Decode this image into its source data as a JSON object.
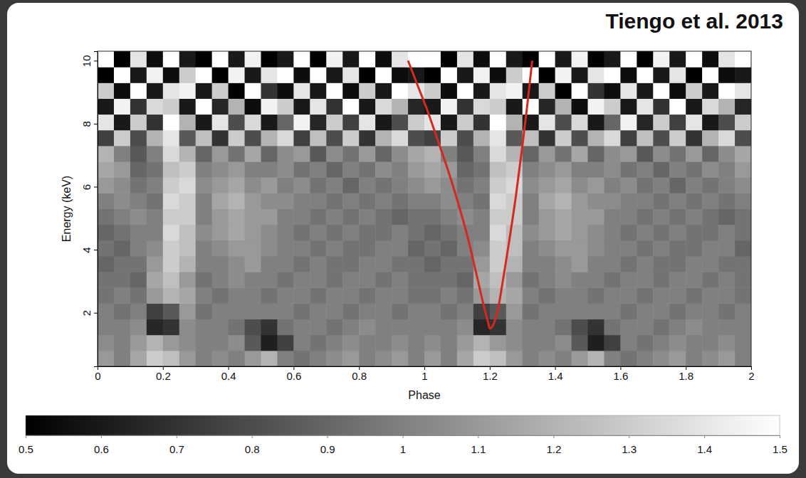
{
  "chart_data": {
    "type": "heatmap",
    "title": "Tiengo et al. 2013",
    "xlabel": "Phase",
    "ylabel": "Energy (keV)",
    "xlim": [
      0,
      2
    ],
    "ylim": [
      0.3,
      10.3
    ],
    "xticks": [
      0,
      0.2,
      0.4,
      0.6,
      0.8,
      1,
      1.2,
      1.4,
      1.6,
      1.8,
      2
    ],
    "yticks": [
      2,
      4,
      6,
      8,
      10
    ],
    "x_bins": [
      0,
      0.05,
      0.1,
      0.15,
      0.2,
      0.25,
      0.3,
      0.35,
      0.4,
      0.45,
      0.5,
      0.55,
      0.6,
      0.65,
      0.7,
      0.75,
      0.8,
      0.85,
      0.9,
      0.95,
      1,
      1.05,
      1.1,
      1.15,
      1.2,
      1.25,
      1.3,
      1.35,
      1.4,
      1.45,
      1.5,
      1.55,
      1.6,
      1.65,
      1.7,
      1.75,
      1.8,
      1.85,
      1.9,
      1.95,
      2
    ],
    "y_bins": [
      0.3,
      0.8,
      1.3,
      1.8,
      2.3,
      2.8,
      3.3,
      3.8,
      4.3,
      4.8,
      5.3,
      5.8,
      6.3,
      6.8,
      7.3,
      7.8,
      8.3,
      8.8,
      9.3,
      9.8,
      10.3
    ],
    "z": [
      [
        1.1,
        1.0,
        1.15,
        1.3,
        1.25,
        1.1,
        1.0,
        1.05,
        1.0,
        1.1,
        1.2,
        1.0,
        0.95,
        1.0,
        1.05,
        1.1,
        1.0,
        1.05,
        1.1,
        1.0,
        1.1,
        1.0,
        1.15,
        1.3,
        1.25,
        1.1,
        1.0,
        1.05,
        1.0,
        1.1,
        1.2,
        1.0,
        0.95,
        1.0,
        1.05,
        1.1,
        1.0,
        1.05,
        1.1,
        1.0
      ],
      [
        1.05,
        1.0,
        1.1,
        1.2,
        1.1,
        1.05,
        1.0,
        1.0,
        1.05,
        0.85,
        0.62,
        0.75,
        1.0,
        0.95,
        1.0,
        1.05,
        1.0,
        1.0,
        1.05,
        1.0,
        1.05,
        1.0,
        1.1,
        1.2,
        1.1,
        1.05,
        1.0,
        1.0,
        1.05,
        0.85,
        0.62,
        0.75,
        1.0,
        0.95,
        1.0,
        1.05,
        1.0,
        1.0,
        1.05,
        1.0
      ],
      [
        1.0,
        1.0,
        1.05,
        0.65,
        0.7,
        1.05,
        1.0,
        1.0,
        0.95,
        0.8,
        0.7,
        0.95,
        1.0,
        1.0,
        0.95,
        1.0,
        1.05,
        1.0,
        1.0,
        1.0,
        1.0,
        1.0,
        1.05,
        0.65,
        0.7,
        1.05,
        1.0,
        1.0,
        0.95,
        0.8,
        0.7,
        0.95,
        1.0,
        1.0,
        0.95,
        1.0,
        1.05,
        1.0,
        1.0,
        1.0
      ],
      [
        1.0,
        0.95,
        1.0,
        0.75,
        0.85,
        1.1,
        0.95,
        1.0,
        1.0,
        1.0,
        1.0,
        1.0,
        0.95,
        1.0,
        1.0,
        0.95,
        1.0,
        1.0,
        0.95,
        1.0,
        1.0,
        0.95,
        1.0,
        0.75,
        0.85,
        1.1,
        0.95,
        1.0,
        1.0,
        1.0,
        1.0,
        1.0,
        0.95,
        1.0,
        1.0,
        0.95,
        1.0,
        1.0,
        0.95,
        1.0
      ],
      [
        0.95,
        1.0,
        0.95,
        1.1,
        1.2,
        1.15,
        1.0,
        0.95,
        1.0,
        1.0,
        0.95,
        1.0,
        1.0,
        0.95,
        1.0,
        1.0,
        0.95,
        1.0,
        1.0,
        0.95,
        0.95,
        1.0,
        0.95,
        1.1,
        1.2,
        1.15,
        1.0,
        0.95,
        1.0,
        1.0,
        0.95,
        1.0,
        1.0,
        0.95,
        1.0,
        1.0,
        0.95,
        1.0,
        1.0,
        0.95
      ],
      [
        0.95,
        0.95,
        0.9,
        1.15,
        1.25,
        1.1,
        0.95,
        1.0,
        1.05,
        1.0,
        1.0,
        0.95,
        1.0,
        1.0,
        0.95,
        1.0,
        1.0,
        0.95,
        1.0,
        0.95,
        0.95,
        0.95,
        0.9,
        1.15,
        1.25,
        1.1,
        0.95,
        1.0,
        1.05,
        1.0,
        1.0,
        0.95,
        1.0,
        1.0,
        0.95,
        1.0,
        1.0,
        0.95,
        1.0,
        0.95
      ],
      [
        0.9,
        0.95,
        0.95,
        1.1,
        1.3,
        1.2,
        1.0,
        1.0,
        1.05,
        1.1,
        1.0,
        1.0,
        0.95,
        1.0,
        0.95,
        0.95,
        1.0,
        1.0,
        0.95,
        0.95,
        0.9,
        0.95,
        0.95,
        1.1,
        1.3,
        1.2,
        1.0,
        1.0,
        1.05,
        1.1,
        1.0,
        1.0,
        0.95,
        1.0,
        0.95,
        0.95,
        1.0,
        1.0,
        0.95,
        0.95
      ],
      [
        0.95,
        0.9,
        1.0,
        1.05,
        1.3,
        1.25,
        1.0,
        1.05,
        1.1,
        1.1,
        1.05,
        1.0,
        1.0,
        0.95,
        1.0,
        0.95,
        0.95,
        1.0,
        1.0,
        0.9,
        0.95,
        0.9,
        1.0,
        1.05,
        1.3,
        1.25,
        1.0,
        1.05,
        1.1,
        1.1,
        1.05,
        1.0,
        1.0,
        0.95,
        1.0,
        0.95,
        0.95,
        1.0,
        1.0,
        0.9
      ],
      [
        0.9,
        0.95,
        1.0,
        1.0,
        1.35,
        1.25,
        1.05,
        1.1,
        1.15,
        1.1,
        1.05,
        1.0,
        0.95,
        1.0,
        0.95,
        1.0,
        0.95,
        0.95,
        1.0,
        0.95,
        0.9,
        0.95,
        1.0,
        1.0,
        1.35,
        1.25,
        1.05,
        1.1,
        1.15,
        1.1,
        1.05,
        1.0,
        0.95,
        1.0,
        0.95,
        1.0,
        0.95,
        0.95,
        1.0,
        0.95
      ],
      [
        0.95,
        1.0,
        1.05,
        1.0,
        1.3,
        1.3,
        1.0,
        1.1,
        1.15,
        1.1,
        1.1,
        1.0,
        1.0,
        0.95,
        1.0,
        0.95,
        1.0,
        0.95,
        0.9,
        0.95,
        0.95,
        1.0,
        1.05,
        1.0,
        1.3,
        1.3,
        1.0,
        1.1,
        1.15,
        1.1,
        1.1,
        1.0,
        1.0,
        0.95,
        1.0,
        0.95,
        1.0,
        0.95,
        0.9,
        0.95
      ],
      [
        1.0,
        1.05,
        1.0,
        0.95,
        1.35,
        1.3,
        1.0,
        1.15,
        1.2,
        1.1,
        1.05,
        1.05,
        1.0,
        1.0,
        0.95,
        1.0,
        0.95,
        1.0,
        0.95,
        1.0,
        1.0,
        1.05,
        1.0,
        0.95,
        1.35,
        1.3,
        1.0,
        1.15,
        1.2,
        1.1,
        1.05,
        1.05,
        1.0,
        1.0,
        0.95,
        1.0,
        0.95,
        1.0,
        0.95,
        1.0
      ],
      [
        1.1,
        1.05,
        0.95,
        1.0,
        1.3,
        1.35,
        1.05,
        1.1,
        1.15,
        1.05,
        1.1,
        1.0,
        1.05,
        0.95,
        1.0,
        0.9,
        1.0,
        0.95,
        1.0,
        1.05,
        1.1,
        1.05,
        0.95,
        1.0,
        1.3,
        1.35,
        1.05,
        1.1,
        1.15,
        1.05,
        1.1,
        1.0,
        1.05,
        0.95,
        1.0,
        0.9,
        1.0,
        0.95,
        1.0,
        1.05
      ],
      [
        1.15,
        1.1,
        0.9,
        0.95,
        1.25,
        1.3,
        1.0,
        1.05,
        1.1,
        1.0,
        1.0,
        1.05,
        0.95,
        1.0,
        0.9,
        1.0,
        0.95,
        1.05,
        1.0,
        1.1,
        1.15,
        1.1,
        0.9,
        0.95,
        1.25,
        1.3,
        1.0,
        1.05,
        1.1,
        1.0,
        1.0,
        1.05,
        0.95,
        1.0,
        0.9,
        1.0,
        0.95,
        1.05,
        1.0,
        1.1
      ],
      [
        1.2,
        1.0,
        0.85,
        1.0,
        1.35,
        1.2,
        0.9,
        1.1,
        0.95,
        1.15,
        0.9,
        1.05,
        1.1,
        0.85,
        1.05,
        0.95,
        1.1,
        0.9,
        1.05,
        1.15,
        1.2,
        1.0,
        0.85,
        1.0,
        1.35,
        1.2,
        0.9,
        1.1,
        0.95,
        1.15,
        0.9,
        1.05,
        1.1,
        0.85,
        1.05,
        0.95,
        1.1,
        0.9,
        1.05,
        1.15
      ],
      [
        0.75,
        1.3,
        0.8,
        1.2,
        1.4,
        0.85,
        1.25,
        0.7,
        1.3,
        0.8,
        1.2,
        1.35,
        0.75,
        1.25,
        0.8,
        1.3,
        0.7,
        1.2,
        1.35,
        0.8,
        0.75,
        1.3,
        0.8,
        1.2,
        1.4,
        0.85,
        1.25,
        0.7,
        1.3,
        0.8,
        1.2,
        1.35,
        0.75,
        1.25,
        0.8,
        1.3,
        0.7,
        1.2,
        1.35,
        0.8
      ],
      [
        1.4,
        0.6,
        1.3,
        0.7,
        1.5,
        1.2,
        0.6,
        1.4,
        0.8,
        1.35,
        0.6,
        0.9,
        1.45,
        0.65,
        1.3,
        0.75,
        1.4,
        0.6,
        0.8,
        1.3,
        1.4,
        0.6,
        1.3,
        0.7,
        1.5,
        1.2,
        0.6,
        1.4,
        0.8,
        1.35,
        0.6,
        0.9,
        1.45,
        0.65,
        1.3,
        0.75,
        1.4,
        0.6,
        0.8,
        1.3
      ],
      [
        0.6,
        1.45,
        0.7,
        1.35,
        1.3,
        0.6,
        1.5,
        0.65,
        1.2,
        0.55,
        1.45,
        1.3,
        0.6,
        1.4,
        0.7,
        1.5,
        0.6,
        1.35,
        1.2,
        0.65,
        0.6,
        1.45,
        0.7,
        1.35,
        1.3,
        0.6,
        1.5,
        0.65,
        1.2,
        0.55,
        1.45,
        1.3,
        0.6,
        1.4,
        0.7,
        1.5,
        0.6,
        1.35,
        1.2,
        0.65
      ],
      [
        1.3,
        0.55,
        1.5,
        0.6,
        1.4,
        1.45,
        0.6,
        1.3,
        0.5,
        1.5,
        0.7,
        0.55,
        1.4,
        0.6,
        1.5,
        0.55,
        1.3,
        0.6,
        1.5,
        1.4,
        1.3,
        0.55,
        1.5,
        0.6,
        1.4,
        1.45,
        0.6,
        1.3,
        0.5,
        1.5,
        0.7,
        0.55,
        1.4,
        0.6,
        1.5,
        0.55,
        1.3,
        0.6,
        1.5,
        1.4
      ],
      [
        0.5,
        1.5,
        0.6,
        1.45,
        0.55,
        1.3,
        1.5,
        0.5,
        1.45,
        0.6,
        1.4,
        1.5,
        0.55,
        1.5,
        0.6,
        1.4,
        0.5,
        1.5,
        0.55,
        0.6,
        0.5,
        1.5,
        0.6,
        1.45,
        0.55,
        1.3,
        1.5,
        0.5,
        1.45,
        0.6,
        1.4,
        1.5,
        0.55,
        1.5,
        0.6,
        1.4,
        0.5,
        1.5,
        0.55,
        0.6
      ],
      [
        1.5,
        0.5,
        1.4,
        0.55,
        1.5,
        0.6,
        0.5,
        1.5,
        0.6,
        1.45,
        0.5,
        0.6,
        1.5,
        0.5,
        1.45,
        0.6,
        1.5,
        0.55,
        1.4,
        1.5,
        1.5,
        0.5,
        1.4,
        0.55,
        1.5,
        0.6,
        0.5,
        1.5,
        0.6,
        1.45,
        0.5,
        0.6,
        1.5,
        0.5,
        1.45,
        0.6,
        1.5,
        0.55,
        1.4,
        1.5
      ]
    ],
    "colorbar": {
      "range": [
        0.5,
        1.5
      ],
      "ticks": [
        0.5,
        0.6,
        0.7,
        0.8,
        0.9,
        1,
        1.1,
        1.2,
        1.3,
        1.4,
        1.5
      ]
    },
    "series": [
      {
        "type": "line",
        "color": "#d42a1e",
        "x": [
          0.95,
          0.98,
          1.01,
          1.04,
          1.07,
          1.1,
          1.13,
          1.16,
          1.18,
          1.195,
          1.2,
          1.21,
          1.225,
          1.24,
          1.26,
          1.28,
          1.3,
          1.315,
          1.33
        ],
        "values": [
          10,
          9.2,
          8.4,
          7.5,
          6.6,
          5.6,
          4.5,
          3.2,
          2.3,
          1.7,
          1.5,
          1.6,
          2.1,
          3.0,
          4.3,
          5.7,
          7.3,
          8.6,
          10
        ]
      }
    ]
  }
}
